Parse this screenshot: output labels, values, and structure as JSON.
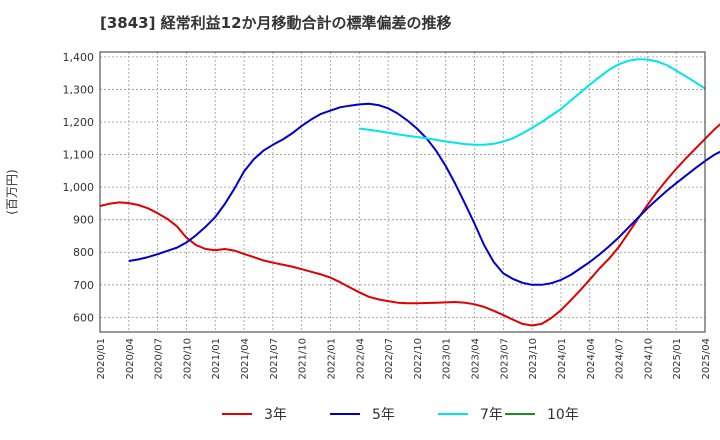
{
  "chart_data": {
    "type": "line",
    "title": "[3843]  経常利益12か月移動合計の標準偏差の推移",
    "ylabel": "(百万円)",
    "xlabel": "",
    "ylim": [
      555,
      1415
    ],
    "yticks": [
      600,
      700,
      800,
      900,
      1000,
      1100,
      1200,
      1300,
      1400
    ],
    "ytick_labels": [
      "600",
      "700",
      "800",
      "900",
      "1,000",
      "1,100",
      "1,200",
      "1,300",
      "1,400"
    ],
    "xticks": [
      "2020/01",
      "2020/04",
      "2020/07",
      "2020/10",
      "2021/01",
      "2021/04",
      "2021/07",
      "2021/10",
      "2022/01",
      "2022/04",
      "2022/07",
      "2022/10",
      "2023/01",
      "2023/04",
      "2023/07",
      "2023/10",
      "2024/01",
      "2024/04",
      "2024/07",
      "2024/10",
      "2025/01",
      "2025/04"
    ],
    "grid": true,
    "legend_position": "bottom",
    "series": [
      {
        "name": "3年",
        "color": "#e00000",
        "start": "2020/01",
        "values": [
          942,
          949,
          953,
          951,
          945,
          935,
          920,
          903,
          880,
          845,
          822,
          810,
          806,
          810,
          805,
          795,
          785,
          775,
          768,
          762,
          756,
          748,
          740,
          732,
          722,
          708,
          692,
          677,
          663,
          655,
          650,
          645,
          643,
          643,
          644,
          645,
          646,
          647,
          645,
          640,
          632,
          620,
          607,
          593,
          580,
          575,
          580,
          598,
          622,
          652,
          683,
          716,
          750,
          780,
          815,
          858,
          902,
          945,
          985,
          1022,
          1056,
          1088,
          1118,
          1148,
          1178,
          1204,
          1228,
          1245,
          1258
        ]
      },
      {
        "name": "5年",
        "color": "#0000cc",
        "start": "2020/04",
        "values": [
          773,
          778,
          785,
          794,
          804,
          814,
          830,
          852,
          878,
          908,
          948,
          995,
          1048,
          1085,
          1112,
          1130,
          1146,
          1165,
          1188,
          1208,
          1225,
          1235,
          1245,
          1250,
          1254,
          1256,
          1252,
          1242,
          1226,
          1205,
          1180,
          1150,
          1112,
          1065,
          1010,
          950,
          888,
          822,
          770,
          735,
          718,
          706,
          700,
          700,
          705,
          715,
          730,
          750,
          770,
          793,
          818,
          845,
          875,
          905,
          935,
          962,
          988,
          1012,
          1035,
          1058,
          1080,
          1100,
          1115,
          1124,
          1130
        ]
      },
      {
        "name": "7年",
        "color": "#00e5e5",
        "start": "2022/04",
        "values": [
          1180,
          1176,
          1172,
          1167,
          1162,
          1158,
          1154,
          1150,
          1145,
          1140,
          1136,
          1132,
          1130,
          1130,
          1133,
          1140,
          1150,
          1165,
          1182,
          1200,
          1220,
          1240,
          1265,
          1290,
          1315,
          1338,
          1360,
          1377,
          1388,
          1393,
          1392,
          1386,
          1375,
          1358,
          1340,
          1322,
          1303
        ]
      },
      {
        "name": "10年",
        "color": "#228b22",
        "start": "2020/01",
        "values": []
      }
    ]
  }
}
